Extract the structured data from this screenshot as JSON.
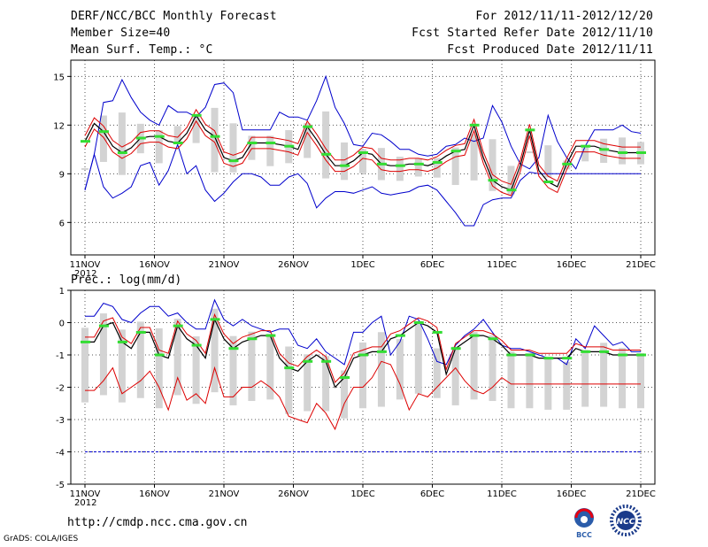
{
  "header": {
    "title": "DERF/NCC/BCC Monthly Forecast",
    "member_size": "Member Size=40",
    "var1": "Mean Surf. Temp.: °C",
    "period": "For 2012/11/11-2012/12/20",
    "started": "Fcst Started Refer Date 2012/11/10",
    "produced": "Fcst Produced Date 2012/11/11"
  },
  "footer": {
    "url": "http://cmdp.ncc.cma.gov.cn",
    "grads": "GrADS: COLA/IGES",
    "logo_bcc": "BCC",
    "logo_ncc": "NCC"
  },
  "colors": {
    "max_min": "#0000cc",
    "spread": "#dd0000",
    "mean": "#000000",
    "median": "#33dd33",
    "box": "#d3d3d3"
  },
  "chart_data": [
    {
      "type": "line",
      "title": "Mean Surf. Temp.: °C",
      "ylim": [
        4,
        16
      ],
      "yticks": [
        6,
        9,
        12,
        15
      ],
      "x_ticks": [
        "11NOV\n2012",
        "16NOV",
        "21NOV",
        "26NOV",
        "1DEC",
        "6DEC",
        "11DEC",
        "16DEC",
        "21DEC"
      ],
      "x_tick_days": [
        1,
        6,
        11,
        16,
        21,
        26,
        31,
        36,
        41
      ],
      "series": [
        {
          "name": "max",
          "values": [
            8.0,
            10.2,
            13.4,
            13.5,
            14.8,
            13.7,
            12.8,
            12.3,
            12.0,
            13.2,
            12.8,
            12.8,
            12.5,
            13.1,
            14.5,
            14.6,
            14.0,
            11.7,
            11.7,
            11.7,
            11.7,
            12.8,
            12.5,
            12.5,
            12.3,
            13.5,
            15.0,
            13.1,
            12.1,
            10.8,
            10.7,
            11.5,
            11.4,
            11.0,
            10.5,
            10.5,
            10.2,
            10.1,
            10.2,
            10.7,
            10.8,
            11.2,
            11.0,
            11.2,
            13.2,
            12.2,
            10.7,
            9.6,
            9.3,
            10.0,
            12.6,
            11.0,
            10.0,
            9.3,
            10.7,
            11.7,
            11.7,
            11.7,
            12.0,
            11.6,
            11.5
          ]
        },
        {
          "name": "mean",
          "values": [
            11.0,
            12.1,
            11.6,
            10.7,
            10.3,
            10.6,
            11.2,
            11.3,
            11.3,
            11.0,
            10.9,
            11.5,
            12.6,
            11.7,
            11.3,
            10.0,
            9.8,
            10.0,
            10.9,
            10.9,
            10.9,
            10.8,
            10.7,
            10.5,
            11.9,
            11.1,
            10.2,
            9.5,
            9.5,
            9.8,
            10.3,
            10.2,
            9.6,
            9.5,
            9.5,
            9.6,
            9.6,
            9.5,
            9.7,
            10.1,
            10.4,
            10.5,
            12.0,
            10.0,
            8.6,
            8.2,
            8.0,
            9.5,
            11.7,
            9.2,
            8.5,
            8.2,
            9.6,
            10.7,
            10.7,
            10.7,
            10.5,
            10.4,
            10.3,
            10.3,
            10.3
          ]
        },
        {
          "name": "min",
          "values": [
            8.0,
            10.2,
            8.2,
            7.5,
            7.8,
            8.2,
            9.5,
            9.7,
            8.3,
            9.2,
            10.8,
            9.0,
            9.5,
            8.0,
            7.3,
            7.8,
            8.5,
            9.0,
            9.0,
            8.8,
            8.3,
            8.3,
            8.8,
            9.0,
            8.4,
            6.9,
            7.5,
            7.9,
            7.9,
            7.8,
            8.0,
            8.2,
            7.8,
            7.7,
            7.8,
            7.9,
            8.2,
            8.3,
            8.0,
            7.3,
            6.6,
            5.8,
            5.8,
            7.1,
            7.4,
            7.5,
            7.5,
            8.6,
            9.1,
            9.0,
            9.0,
            9.0,
            9.0,
            9.0,
            9.0,
            9.0,
            9.0,
            9.0,
            9.0,
            9.0,
            9.0
          ]
        }
      ]
    },
    {
      "type": "line",
      "title": "Prec.: log(mm/d)",
      "ylim": [
        -5,
        1
      ],
      "yticks": [
        -5,
        -4,
        -3,
        -2,
        -1,
        0,
        1
      ],
      "x_ticks": [
        "11NOV\n2012",
        "16NOV",
        "21NOV",
        "26NOV",
        "1DEC",
        "6DEC",
        "11DEC",
        "16DEC",
        "21DEC"
      ],
      "x_tick_days": [
        1,
        6,
        11,
        16,
        21,
        26,
        31,
        36,
        41
      ],
      "series": [
        {
          "name": "max",
          "values": [
            0.2,
            0.2,
            0.6,
            0.5,
            0.1,
            0.0,
            0.3,
            0.5,
            0.5,
            0.2,
            0.3,
            0.0,
            -0.2,
            -0.2,
            0.7,
            0.1,
            -0.1,
            0.1,
            -0.1,
            -0.2,
            -0.3,
            -0.2,
            -0.2,
            -0.7,
            -0.8,
            -0.5,
            -0.9,
            -1.1,
            -1.3,
            -0.3,
            -0.3,
            0.0,
            0.2,
            -1.0,
            -0.6,
            0.2,
            0.1,
            -0.5,
            -1.2,
            -1.3,
            -0.7,
            -0.4,
            -0.2,
            0.1,
            -0.3,
            -0.7,
            -0.8,
            -0.8,
            -0.9,
            -1.0,
            -1.1,
            -1.1,
            -1.3,
            -0.5,
            -0.8,
            -0.1,
            -0.4,
            -0.7,
            -0.6,
            -0.9,
            -0.9
          ]
        },
        {
          "name": "mean",
          "values": [
            -0.6,
            -0.6,
            -0.1,
            0.0,
            -0.6,
            -0.8,
            -0.3,
            -0.3,
            -1.0,
            -1.1,
            -0.1,
            -0.5,
            -0.7,
            -1.1,
            0.1,
            -0.5,
            -0.8,
            -0.6,
            -0.5,
            -0.4,
            -0.4,
            -1.1,
            -1.4,
            -1.5,
            -1.2,
            -1.0,
            -1.2,
            -2.0,
            -1.7,
            -1.1,
            -1.0,
            -0.9,
            -0.9,
            -0.5,
            -0.4,
            -0.2,
            0.0,
            -0.1,
            -0.3,
            -1.6,
            -0.8,
            -0.6,
            -0.4,
            -0.4,
            -0.5,
            -0.7,
            -1.0,
            -1.0,
            -1.0,
            -1.1,
            -1.1,
            -1.1,
            -1.1,
            -0.8,
            -0.9,
            -0.9,
            -0.9,
            -1.0,
            -1.0,
            -1.0,
            -1.0
          ]
        },
        {
          "name": "min",
          "values": [
            -2.1,
            -2.1,
            -1.8,
            -1.4,
            -2.2,
            -2.0,
            -1.8,
            -1.5,
            -2.0,
            -2.7,
            -1.7,
            -2.4,
            -2.2,
            -2.5,
            -1.4,
            -2.3,
            -2.3,
            -2.0,
            -2.0,
            -1.8,
            -2.0,
            -2.3,
            -2.9,
            -3.0,
            -3.1,
            -2.5,
            -2.8,
            -3.3,
            -2.5,
            -2.0,
            -2.0,
            -1.7,
            -1.2,
            -1.3,
            -1.9,
            -2.7,
            -2.2,
            -2.3,
            -2.0,
            -1.7,
            -1.4,
            -1.8,
            -2.1,
            -2.2,
            -2.0,
            -1.7,
            -1.9,
            -1.9,
            -1.9,
            -1.9,
            -1.9,
            -1.9,
            -1.9,
            -1.9,
            -1.9,
            -1.9,
            -1.9,
            -1.9,
            -1.9,
            -1.9,
            -1.9
          ]
        },
        {
          "name": "min_floor",
          "values": [
            -4,
            -4,
            -4,
            -4,
            -4,
            -4,
            -4,
            -4,
            -4,
            -4,
            -4,
            -4,
            -4,
            -4,
            -4,
            -4,
            -4,
            -4,
            -4,
            -4,
            -4,
            -4,
            -4,
            -4,
            -4,
            -4,
            -4,
            -4,
            -4,
            -4,
            -4,
            -4,
            -4,
            -4,
            -4,
            -4,
            -4,
            -4,
            -4,
            -4,
            -4,
            -4,
            -4,
            -4,
            -4,
            -4,
            -4,
            -4,
            -4,
            -4,
            -4,
            -4,
            -4,
            -4,
            -4,
            -4,
            -4,
            -4,
            -4,
            -4,
            -4
          ]
        }
      ]
    }
  ]
}
